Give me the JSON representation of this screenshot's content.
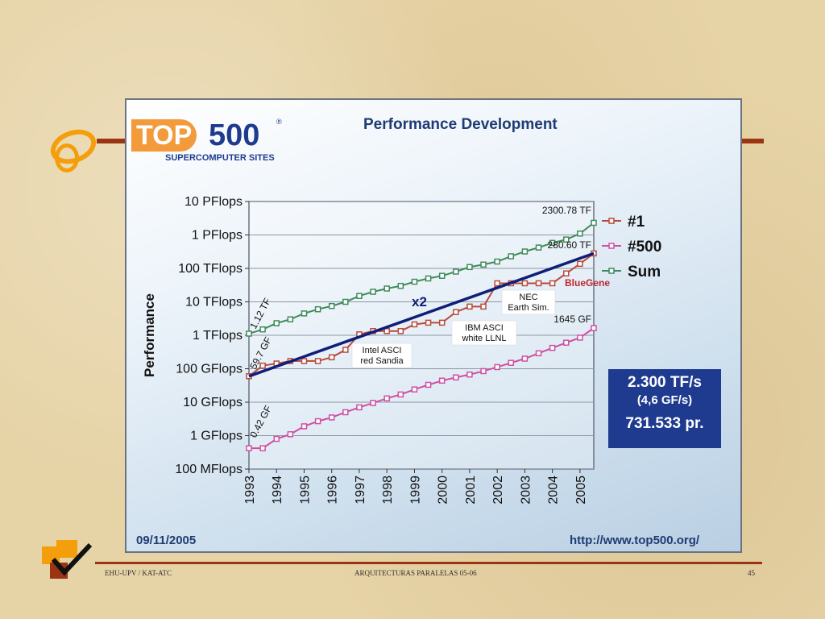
{
  "slide": {
    "footer_left": "EHU-UPV / KAT-ATC",
    "footer_center": "ARQUITECTURAS PARALELAS  05-06",
    "footer_right": "45",
    "decor_icons": [
      "curl-icon",
      "checkmark-icon"
    ]
  },
  "logo": {
    "top": "TOP",
    "num": "500",
    "reg": "®",
    "subtitle": "SUPERCOMPUTER SITES"
  },
  "panel": {
    "title": "Performance Development",
    "date": "09/11/2005",
    "url": "http://www.top500.org/"
  },
  "stats": {
    "line1": "2.300 TF/s",
    "line2": "(4,6 GF/s)",
    "line3": "731.533 pr."
  },
  "chart_data": {
    "type": "line",
    "title": "Performance Development",
    "ylabel": "Performance",
    "y_scale": "log",
    "ylim": [
      0.1,
      10000000
    ],
    "x_ticks": [
      "1993",
      "1994",
      "1995",
      "1996",
      "1997",
      "1998",
      "1999",
      "2000",
      "2001",
      "2002",
      "2003",
      "2004",
      "2005"
    ],
    "y_ticks": [
      {
        "value": 0.1,
        "label": "100 MFlops"
      },
      {
        "value": 1,
        "label": "1 GFlops"
      },
      {
        "value": 10,
        "label": "10 GFlops"
      },
      {
        "value": 100,
        "label": "100 GFlops"
      },
      {
        "value": 1000,
        "label": "1 TFlops"
      },
      {
        "value": 10000,
        "label": "10 TFlops"
      },
      {
        "value": 100000,
        "label": "100 TFlops"
      },
      {
        "value": 1000000,
        "label": "1 PFlops"
      },
      {
        "value": 10000000,
        "label": "10 PFlops"
      }
    ],
    "x": [
      1993.0,
      1993.5,
      1994.0,
      1994.5,
      1995.0,
      1995.5,
      1996.0,
      1996.5,
      1997.0,
      1997.5,
      1998.0,
      1998.5,
      1999.0,
      1999.5,
      2000.0,
      2000.5,
      2001.0,
      2001.5,
      2002.0,
      2002.5,
      2003.0,
      2003.5,
      2004.0,
      2004.5,
      2005.0,
      2005.5
    ],
    "series": [
      {
        "name": "#1",
        "color": "#b84a3c",
        "values": [
          59.7,
          124,
          143,
          170,
          170,
          170,
          220,
          368,
          1068,
          1338,
          1338,
          1338,
          2121,
          2379,
          2379,
          4938,
          7226,
          7226,
          35860,
          35860,
          35860,
          35860,
          35860,
          70720,
          136800,
          280600
        ]
      },
      {
        "name": "#500",
        "color": "#d04ea3",
        "values": [
          0.42,
          0.42,
          0.8,
          1.1,
          1.9,
          2.7,
          3.5,
          5,
          7,
          9.5,
          13,
          17,
          24,
          33,
          44,
          55,
          67,
          85,
          112,
          150,
          200,
          290,
          420,
          600,
          850,
          1645
        ]
      },
      {
        "name": "Sum",
        "color": "#3f8a5a",
        "values": [
          1120,
          1500,
          2300,
          3000,
          4500,
          6000,
          7500,
          10000,
          15000,
          20000,
          25000,
          30000,
          40000,
          50000,
          60000,
          80000,
          110000,
          130000,
          160000,
          230000,
          320000,
          420000,
          580000,
          730000,
          1100000,
          2300780
        ]
      }
    ],
    "trend_line": {
      "label": "x2",
      "color": "#0f1f78",
      "from": [
        1993.0,
        59.7
      ],
      "to": [
        2005.5,
        280600
      ]
    },
    "data_labels": [
      {
        "text": "2300.78 TF",
        "x": 2005.5,
        "y": 2300780
      },
      {
        "text": "280.60 TF",
        "x": 2005.5,
        "y": 280600
      },
      {
        "text": "1645 GF",
        "x": 2005.5,
        "y": 1645
      },
      {
        "text": "1.12 TF",
        "x": 1993.0,
        "y": 1120
      },
      {
        "text": "59.7 GF",
        "x": 1993.0,
        "y": 59.7
      },
      {
        "text": "0.42 GF",
        "x": 1993.0,
        "y": 0.42
      }
    ],
    "annotations": [
      {
        "text": "BlueGene",
        "color": "#c0262d"
      },
      {
        "text": [
          "NEC",
          "Earth Sim."
        ]
      },
      {
        "text": [
          "IBM ASCI",
          "white LLNL"
        ]
      },
      {
        "text": [
          "Intel ASCI",
          "red Sandia"
        ]
      }
    ],
    "legend": {
      "position": "right"
    },
    "grid": true
  }
}
